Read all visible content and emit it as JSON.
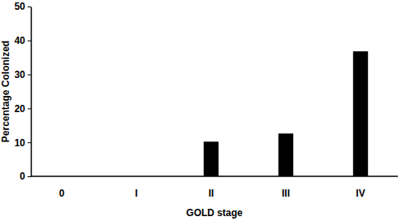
{
  "chart_data": {
    "type": "bar",
    "categories": [
      "0",
      "I",
      "II",
      "III",
      "IV"
    ],
    "values": [
      0,
      0,
      10.2,
      12.6,
      36.8
    ],
    "color": "#000000",
    "x_label": "GOLD stage",
    "y_label": "Percentage Colonized",
    "ylim": [
      0,
      50
    ],
    "yticks": [
      0,
      10,
      20,
      30,
      40,
      50
    ],
    "grid": false
  }
}
